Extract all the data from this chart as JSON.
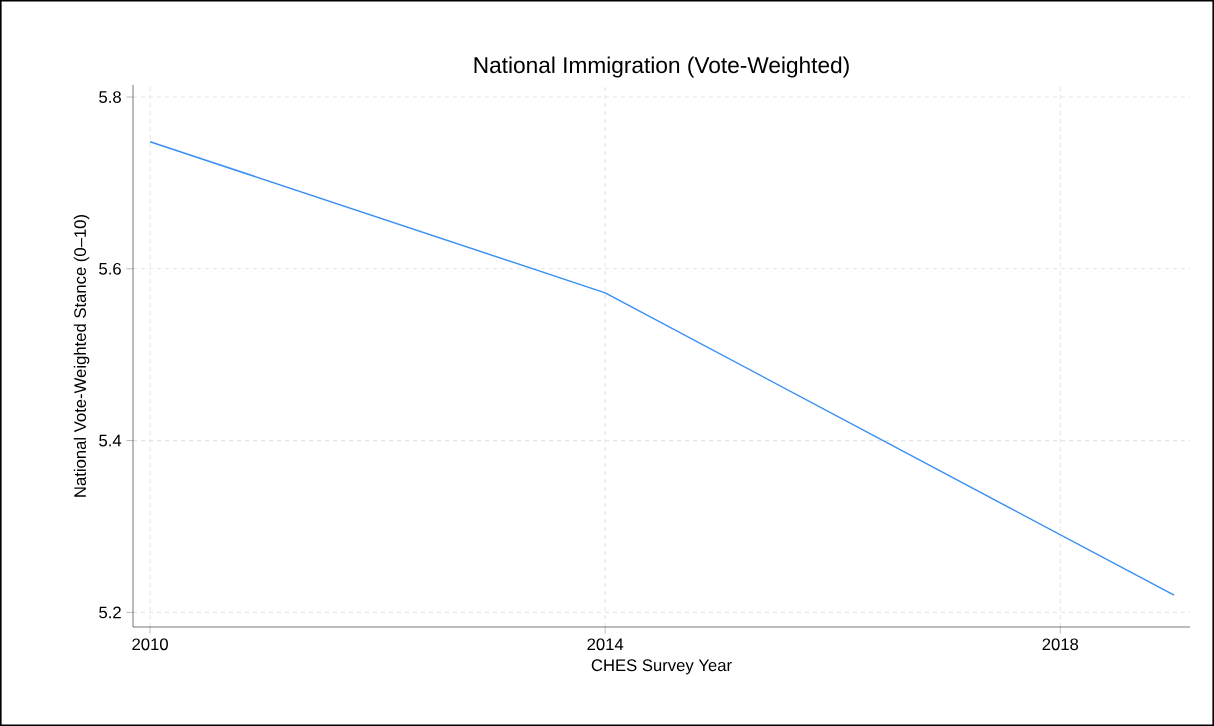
{
  "chart_data": {
    "type": "line",
    "title": "National Immigration (Vote-Weighted)",
    "xlabel": "CHES Survey Year",
    "ylabel": "National Vote-Weighted Stance (0–10)",
    "x": [
      2010,
      2014,
      2019
    ],
    "series": [
      {
        "color": "#3a8ff5",
        "values": [
          5.748,
          5.572,
          5.22
        ]
      }
    ],
    "xlim": [
      2009.85,
      2019.14
    ],
    "ylim": [
      5.183,
      5.814
    ],
    "xticks": [
      2010,
      2014,
      2018
    ],
    "yticks": [
      {
        "value": 5.2,
        "label": "5.2"
      },
      {
        "value": 5.4,
        "label": "5.4"
      },
      {
        "value": 5.6,
        "label": "5.6"
      },
      {
        "value": 5.8,
        "label": "5.8"
      }
    ],
    "grid": true,
    "marker": "none",
    "line_style": "solid"
  }
}
